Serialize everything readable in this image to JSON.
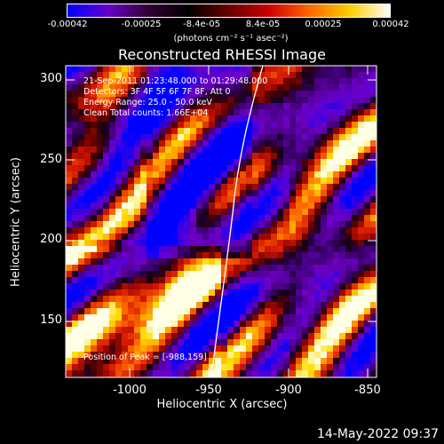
{
  "colorbar": {
    "ticks": [
      "-0.00042",
      "-0.00025",
      "-8.4e-05",
      "8.4e-05",
      "0.00025",
      "0.00042"
    ],
    "units": "(photons cm⁻² s⁻¹ asec⁻²)",
    "colormap": [
      "#0000ff",
      "#6600cc",
      "#330033",
      "#000000",
      "#660000",
      "#cc0000",
      "#ff6600",
      "#ffcc00",
      "#ffffff"
    ]
  },
  "plot": {
    "title": "Reconstructed RHESSI Image",
    "info_lines": [
      "21-Sep-2011 01:23:48.000 to 01:29:48.000",
      "Detectors: 3F 4F 5F 6F 7F 8F, Att 0",
      "Energy Range: 25.0 - 50.0 keV",
      "Clean     Total counts: 1.66E+04"
    ],
    "peak_label": "Position of Peak = [-988,159]",
    "xlabel": "Heliocentric X (arcsec)",
    "ylabel": "Heliocentric Y (arcsec)",
    "xticks": [
      "-1000",
      "-950",
      "-900",
      "-850"
    ],
    "yticks": [
      "300",
      "250",
      "200",
      "150"
    ],
    "xlim": [
      -1040,
      -840
    ],
    "ylim": [
      115,
      308
    ]
  },
  "footer": {
    "timestamp": "14-May-2022 09:37"
  }
}
